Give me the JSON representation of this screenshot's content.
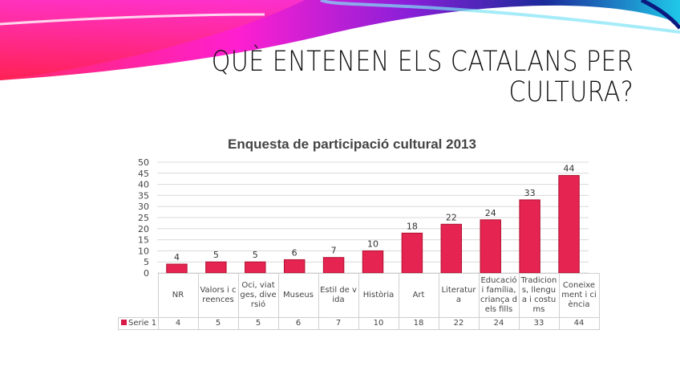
{
  "slide": {
    "title_line1": "QUÈ ENTENEN ELS CATALANS PER",
    "title_line2": "CULTURA?"
  },
  "colors": {
    "bar": "#e52452",
    "bar_dark": "#b0102f",
    "grid": "#d9d9d9"
  },
  "chart_data": {
    "type": "bar",
    "title": "Enquesta de participació cultural 2013",
    "categories": [
      "NR",
      "Valors i creences",
      "Oci, viatges, diversió",
      "Museus",
      "Estil de vida",
      "Història",
      "Art",
      "Literatura",
      "Educació i família, criança dels fills",
      "Tradicions, llengua i costums",
      "Coneixement i ciència"
    ],
    "series": [
      {
        "name": "Serie 1",
        "values": [
          4,
          5,
          5,
          6,
          7,
          10,
          18,
          22,
          24,
          33,
          44
        ]
      }
    ],
    "ylim": [
      0,
      50
    ],
    "yticks": [
      0,
      5,
      10,
      15,
      20,
      25,
      30,
      35,
      40,
      45,
      50
    ],
    "grid": true,
    "data_labels": true,
    "data_table": true,
    "legend": "data-table-left"
  }
}
